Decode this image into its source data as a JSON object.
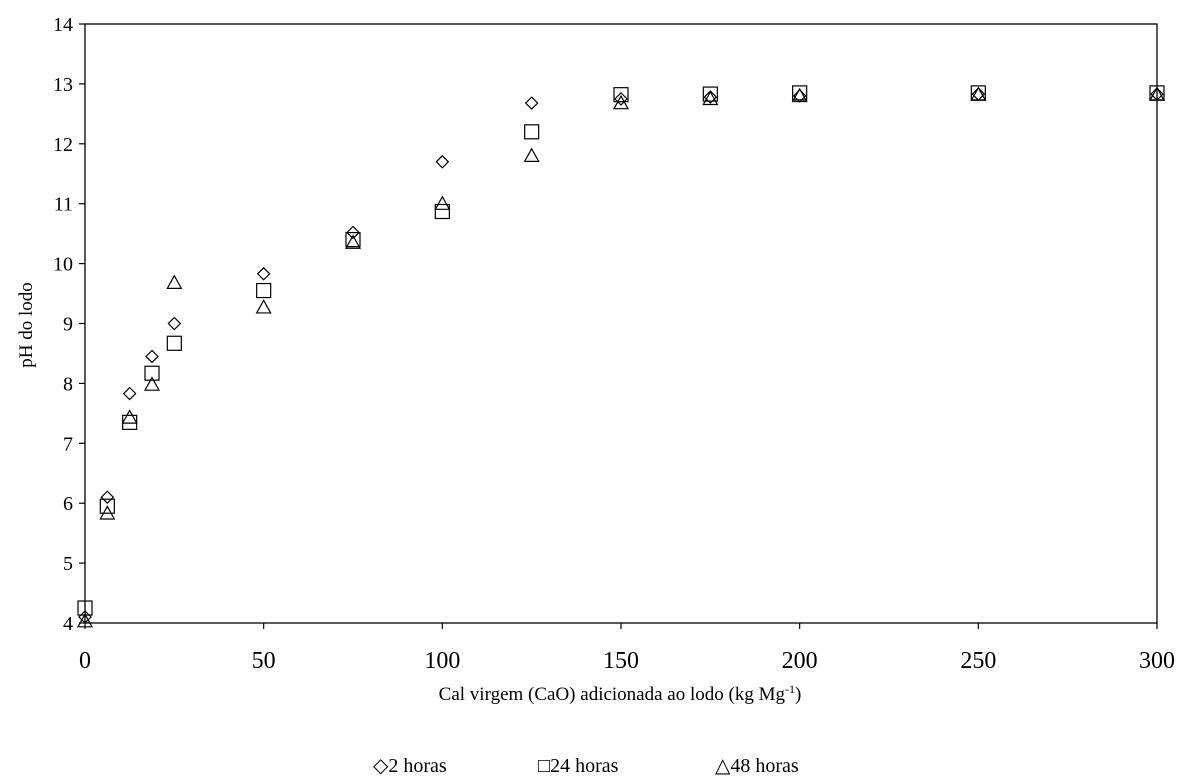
{
  "chart_data": {
    "type": "scatter",
    "xlabel": "Cal virgem (CaO) adicionada  ao lodo (kg Mg",
    "xlabel_superscript": "-1",
    "xlabel_suffix": ")",
    "ylabel": "pH do lodo",
    "xlim": [
      0,
      300
    ],
    "ylim": [
      4,
      14
    ],
    "xticks": [
      "0",
      "50",
      "100",
      "150",
      "200",
      "250",
      "300"
    ],
    "yticks": [
      "4",
      "5",
      "6",
      "7",
      "8",
      "9",
      "10",
      "11",
      "12",
      "13",
      "14"
    ],
    "grid": false,
    "legend_position": "bottom",
    "series": [
      {
        "name": "2 horas",
        "marker": "diamond",
        "x": [
          0,
          6.25,
          12.5,
          18.75,
          25,
          50,
          75,
          100,
          125,
          150,
          175,
          200,
          250,
          300
        ],
        "y": [
          4.1,
          6.1,
          7.83,
          8.45,
          9.0,
          9.83,
          10.52,
          11.7,
          12.68,
          12.75,
          12.78,
          12.8,
          12.83,
          12.83
        ]
      },
      {
        "name": "24 horas",
        "marker": "square",
        "x": [
          0,
          6.25,
          12.5,
          18.75,
          25,
          50,
          75,
          100,
          125,
          150,
          175,
          200,
          250,
          300
        ],
        "y": [
          4.25,
          5.95,
          7.35,
          8.17,
          8.67,
          9.55,
          10.4,
          10.87,
          12.2,
          12.82,
          12.83,
          12.85,
          12.85,
          12.85
        ]
      },
      {
        "name": "48 horas",
        "marker": "triangle",
        "x": [
          0,
          6.25,
          12.5,
          18.75,
          25,
          50,
          75,
          100,
          125,
          150,
          175,
          200,
          250,
          300
        ],
        "y": [
          4.03,
          5.83,
          7.43,
          7.98,
          9.68,
          9.27,
          10.35,
          11.0,
          11.8,
          12.68,
          12.75,
          12.8,
          12.82,
          12.82
        ]
      }
    ]
  },
  "legend": {
    "items": [
      {
        "symbol": "◇",
        "label": "2 horas"
      },
      {
        "symbol": "□",
        "label": "24 horas"
      },
      {
        "symbol": "△",
        "label": "48 horas"
      }
    ]
  },
  "colors": {
    "axis": "#000000",
    "marker_stroke": "#000000",
    "background": "#ffffff"
  }
}
